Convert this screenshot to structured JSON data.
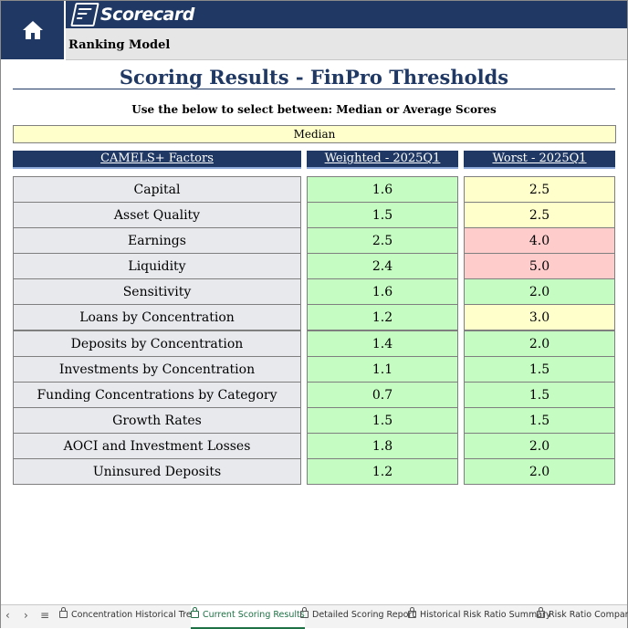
{
  "header": {
    "logo_text": "Scorecard",
    "subtitle": "Ranking Model"
  },
  "page": {
    "title": "Scoring Results - FinPro Thresholds",
    "instruction": "Use the below to select between: Median or Average Scores",
    "selector_value": "Median"
  },
  "table": {
    "columns": [
      "CAMELS+ Factors",
      "Weighted - 2025Q1",
      "Worst - 2025Q1"
    ],
    "rows": [
      {
        "factor": "Capital",
        "weighted": "1.6",
        "worst": "2.5",
        "weighted_status": "green",
        "worst_status": "yellow"
      },
      {
        "factor": "Asset Quality",
        "weighted": "1.5",
        "worst": "2.5",
        "weighted_status": "green",
        "worst_status": "yellow"
      },
      {
        "factor": "Earnings",
        "weighted": "2.5",
        "worst": "4.0",
        "weighted_status": "green",
        "worst_status": "red"
      },
      {
        "factor": "Liquidity",
        "weighted": "2.4",
        "worst": "5.0",
        "weighted_status": "green",
        "worst_status": "red"
      },
      {
        "factor": "Sensitivity",
        "weighted": "1.6",
        "worst": "2.0",
        "weighted_status": "green",
        "worst_status": "green"
      },
      {
        "factor": "Loans by Concentration",
        "weighted": "1.2",
        "worst": "3.0",
        "weighted_status": "green",
        "worst_status": "yellow"
      },
      {
        "factor": "Deposits by Concentration",
        "weighted": "1.4",
        "worst": "2.0",
        "weighted_status": "green",
        "worst_status": "green"
      },
      {
        "factor": "Investments by Concentration",
        "weighted": "1.1",
        "worst": "1.5",
        "weighted_status": "green",
        "worst_status": "green"
      },
      {
        "factor": "Funding Concentrations by Category",
        "weighted": "0.7",
        "worst": "1.5",
        "weighted_status": "green",
        "worst_status": "green"
      },
      {
        "factor": "Growth Rates",
        "weighted": "1.5",
        "worst": "1.5",
        "weighted_status": "green",
        "worst_status": "green"
      },
      {
        "factor": "AOCI and Investment Losses",
        "weighted": "1.8",
        "worst": "2.0",
        "weighted_status": "green",
        "worst_status": "green"
      },
      {
        "factor": "Uninsured Deposits",
        "weighted": "1.2",
        "worst": "2.0",
        "weighted_status": "green",
        "worst_status": "green"
      }
    ]
  },
  "sheet_tabs": {
    "nav_prev": "‹",
    "nav_next": "›",
    "nav_menu": "≡",
    "tabs": [
      {
        "label": "Concentration Historical Trend",
        "active": false
      },
      {
        "label": "Current Scoring Results",
        "active": true
      },
      {
        "label": "Detailed Scoring Report",
        "active": false
      },
      {
        "label": "Historical Risk Ratio Summary",
        "active": false
      },
      {
        "label": "Risk Ratio Comparison",
        "active": false
      }
    ]
  },
  "colors": {
    "navy": "#1f3864",
    "green": "#c5fcc2",
    "yellow": "#ffffcc",
    "red": "#ffcccc",
    "active_tab": "#1e7145"
  },
  "icons": {
    "home": "home-icon",
    "logo": "scorecard-logo-icon",
    "lock": "lock-icon"
  }
}
